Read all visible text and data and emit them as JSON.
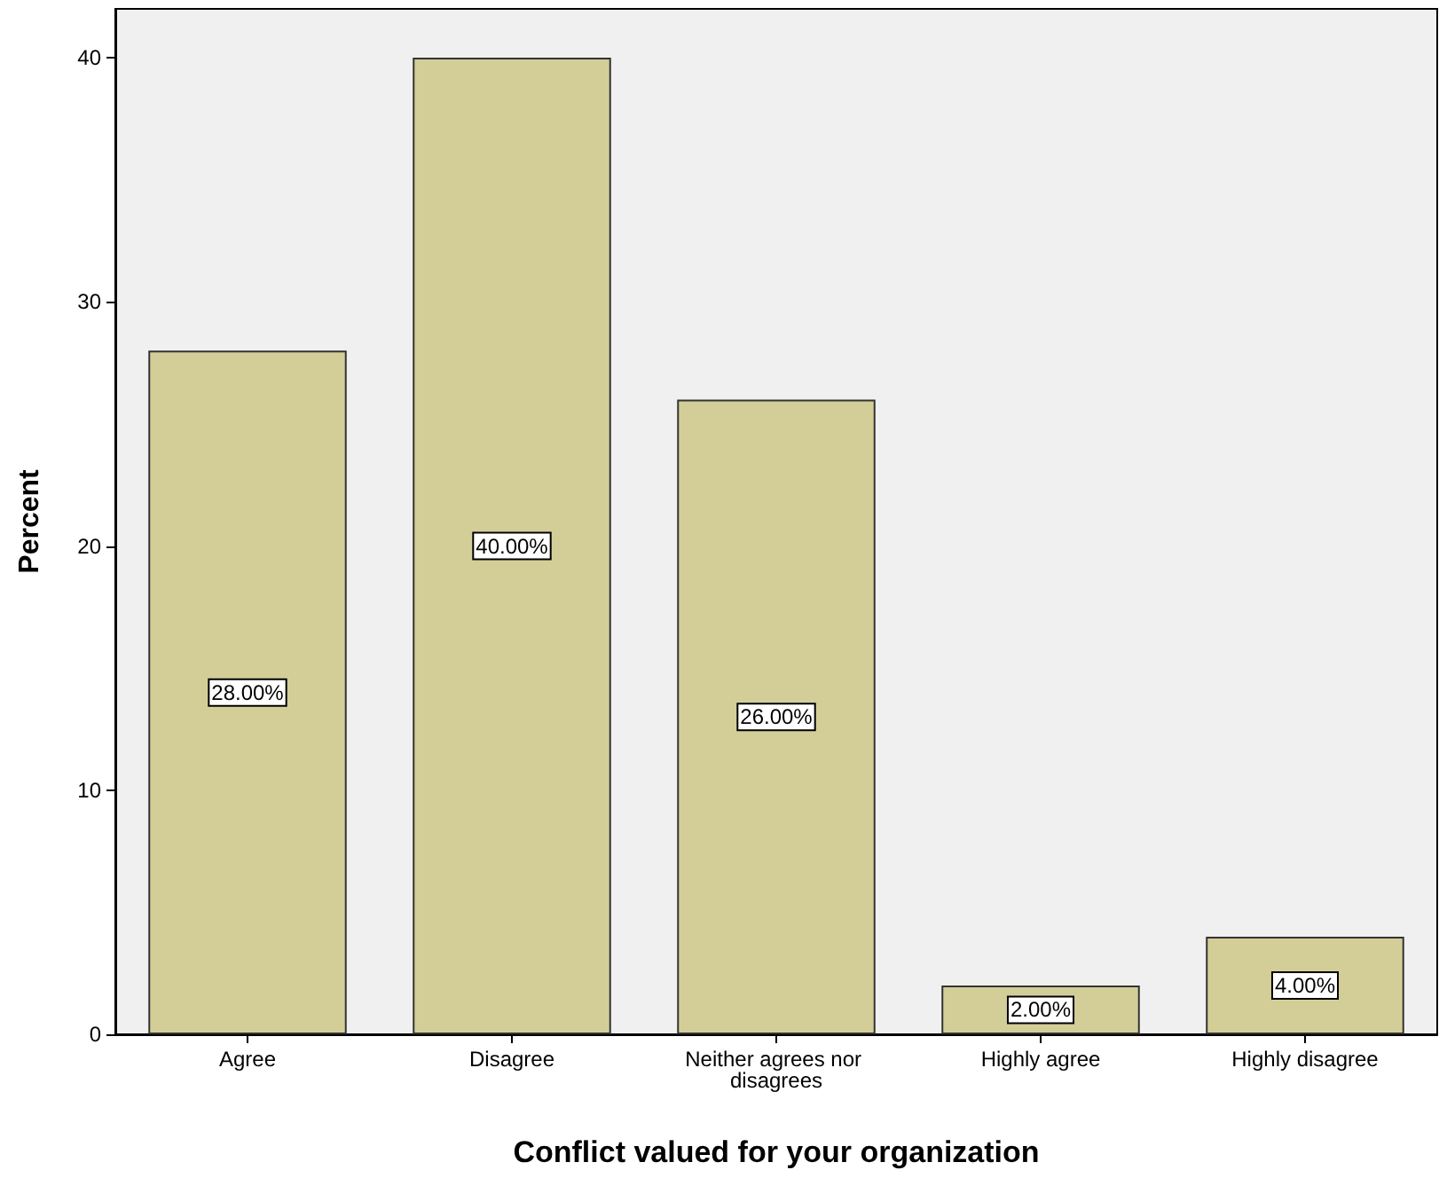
{
  "chart_data": {
    "type": "bar",
    "xlabel": "Conflict valued for your organization",
    "ylabel": "Percent",
    "categories": [
      "Agree",
      "Disagree",
      "Neither agrees nor disagrees",
      "Highly agree",
      "Highly disagree"
    ],
    "values": [
      28,
      40,
      26,
      2,
      4
    ],
    "value_labels": [
      "28.00%",
      "40.00%",
      "26.00%",
      "2.00%",
      "4.00%"
    ],
    "color": "#d3ce98",
    "ylim": [
      0,
      42
    ],
    "yticks": [
      0,
      10,
      20,
      30,
      40
    ],
    "grid": false
  }
}
